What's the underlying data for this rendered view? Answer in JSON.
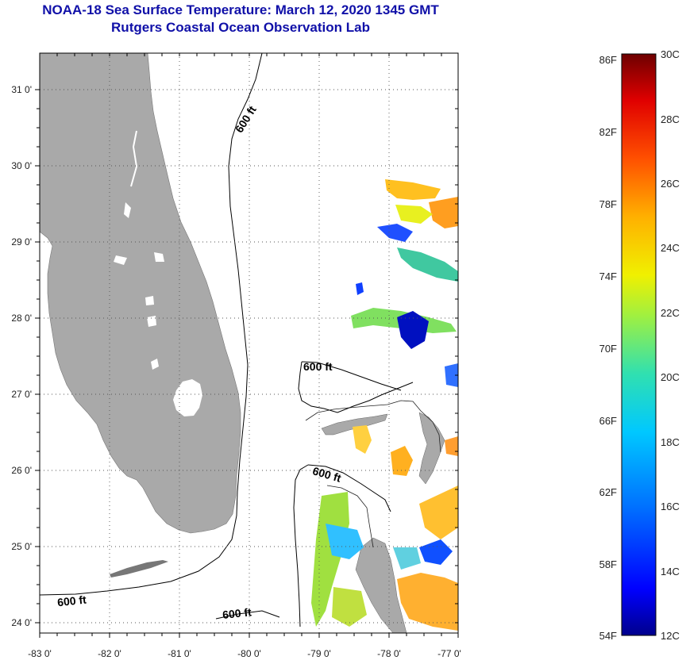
{
  "title": {
    "line1": "NOAA-18 Sea Surface Temperature:  March 12, 2020 1345 GMT",
    "line2": "Rutgers Coastal Ocean Observation Lab"
  },
  "colors": {
    "title": "#1010a8",
    "land": "#a9a9a9",
    "ocean": "#ffffff",
    "gridline": "#555555",
    "isobath": "#000000"
  },
  "map": {
    "longitude_labels": [
      "-83 0'",
      "-82 0'",
      "-81 0'",
      "-80 0'",
      "-79 0'",
      "-78 0'",
      "-77 0'"
    ],
    "latitude_labels": [
      "31 0'",
      "30 0'",
      "29 0'",
      "28 0'",
      "27 0'",
      "26 0'",
      "25 0'",
      "24 0'"
    ],
    "isobath_labels": [
      "600 ft",
      "600 ft",
      "600 ft",
      "600 ft",
      "600 ft"
    ],
    "grid": "dotted",
    "land_areas": [
      "Florida peninsula",
      "Florida Keys",
      "Grand Bahama",
      "Abaco",
      "Andros",
      "Bimini"
    ]
  },
  "colorbar": {
    "fahrenheit_labels": [
      "86F",
      "82F",
      "78F",
      "74F",
      "70F",
      "66F",
      "62F",
      "58F",
      "54F"
    ],
    "celsius_labels": [
      "30C",
      "28C",
      "26C",
      "24C",
      "22C",
      "20C",
      "18C",
      "16C",
      "14C",
      "12C"
    ],
    "range_celsius": [
      12,
      30
    ],
    "gradient_stops": [
      "#00008c",
      "#0000ff",
      "#0070ff",
      "#00c8ff",
      "#30e0b0",
      "#a0f040",
      "#f0f000",
      "#ffb000",
      "#ff5000",
      "#e00000",
      "#6e0000"
    ]
  },
  "sst_patches": [
    {
      "name": "patch-n-1",
      "color": "#ffc020"
    },
    {
      "name": "patch-n-2",
      "color": "#ff9e20"
    },
    {
      "name": "patch-n-3",
      "color": "#e8f020"
    },
    {
      "name": "patch-n-4",
      "color": "#2050ff"
    },
    {
      "name": "patch-n-5",
      "color": "#40c8a0"
    },
    {
      "name": "patch-mid-1",
      "color": "#1040ff"
    },
    {
      "name": "patch-mid-2",
      "color": "#80e060"
    },
    {
      "name": "patch-mid-3",
      "color": "#0010c0"
    },
    {
      "name": "patch-mid-4",
      "color": "#3070ff"
    },
    {
      "name": "patch-bahama-1",
      "color": "#ffd040"
    },
    {
      "name": "patch-bahama-2",
      "color": "#ffb020"
    },
    {
      "name": "patch-bahama-3",
      "color": "#ff9e30"
    },
    {
      "name": "patch-s-1",
      "color": "#a0e040"
    },
    {
      "name": "patch-s-2",
      "color": "#30c0ff"
    },
    {
      "name": "patch-s-3",
      "color": "#ffc030"
    },
    {
      "name": "patch-s-4",
      "color": "#ffb030"
    },
    {
      "name": "patch-s-5",
      "color": "#1050ff"
    },
    {
      "name": "patch-s-6",
      "color": "#60d0e0"
    },
    {
      "name": "patch-s-7",
      "color": "#c0e040"
    }
  ]
}
